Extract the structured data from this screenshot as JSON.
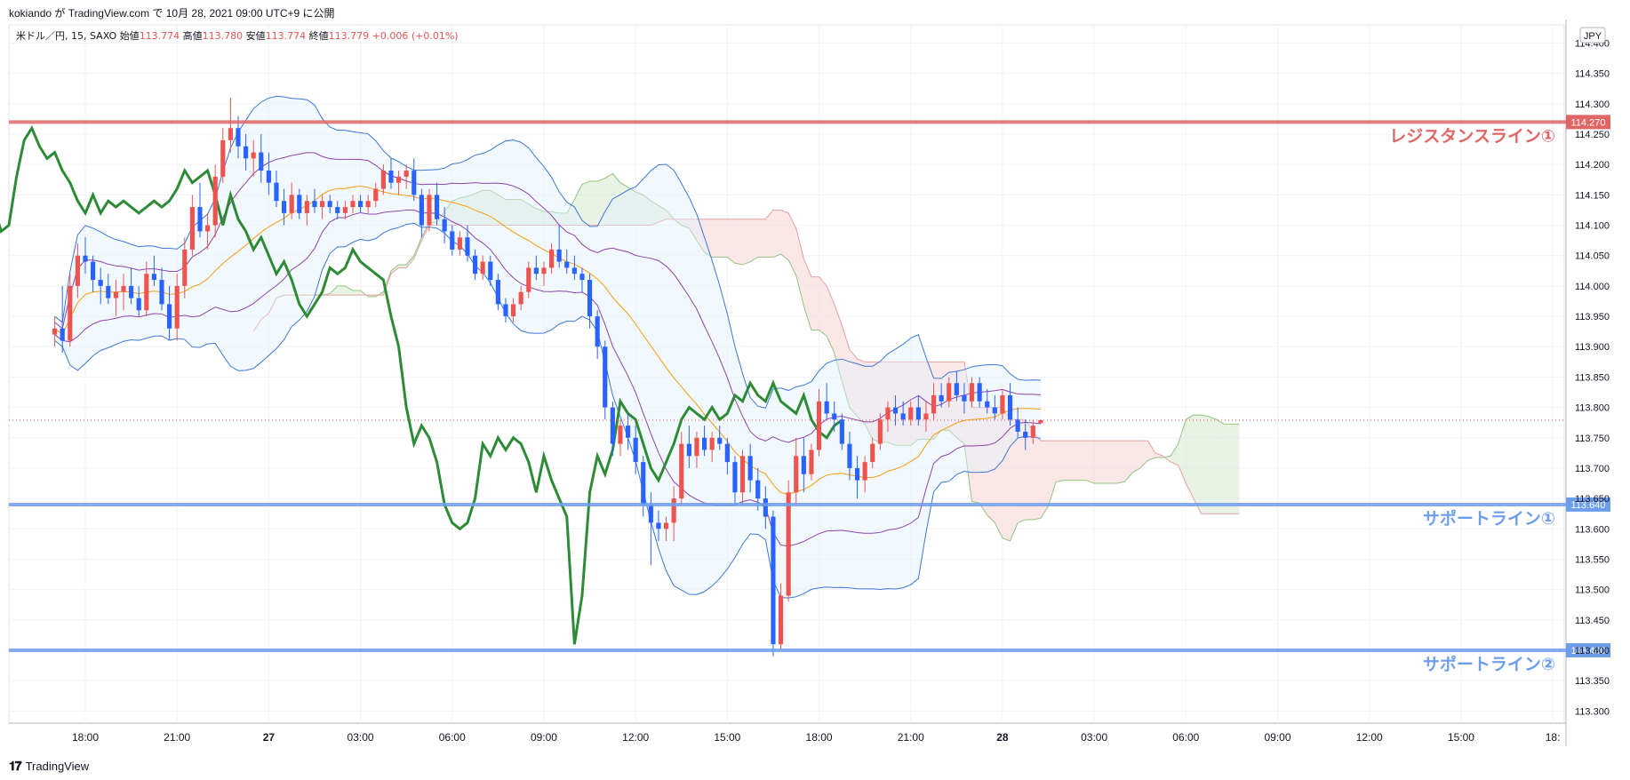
{
  "header": {
    "credit": "kokiando が TradingView.com で 10月 28, 2021 09:00 UTC+9 に公開"
  },
  "footer": {
    "logo_text": "TradingView",
    "logo_icon": "tradingview-logo-icon"
  },
  "chart_data": {
    "type": "candlestick",
    "symbol": "米ドル／円",
    "interval": "15",
    "source": "SAXO",
    "ohlc_legend": [
      {
        "label": "始値",
        "value": "113.774"
      },
      {
        "label": "高値",
        "value": "113.780"
      },
      {
        "label": "安値",
        "value": "113.774"
      },
      {
        "label": "終値",
        "value": "113.779"
      }
    ],
    "change_text": "+0.006 (+0.01%)",
    "currency_badge": "JPY",
    "y_ticks": [
      "114.400",
      "114.350",
      "114.300",
      "114.250",
      "114.200",
      "114.150",
      "114.100",
      "114.050",
      "114.000",
      "113.950",
      "113.900",
      "113.850",
      "113.800",
      "113.750",
      "113.700",
      "113.650",
      "113.600",
      "113.550",
      "113.500",
      "113.450",
      "113.400",
      "113.350",
      "113.300"
    ],
    "ylim": [
      113.28,
      114.43
    ],
    "x_ticks": [
      {
        "label": "18:00",
        "t": 4
      },
      {
        "label": "21:00",
        "t": 16
      },
      {
        "label": "27",
        "t": 28,
        "bold": true
      },
      {
        "label": "03:00",
        "t": 40
      },
      {
        "label": "06:00",
        "t": 52
      },
      {
        "label": "09:00",
        "t": 64
      },
      {
        "label": "12:00",
        "t": 76
      },
      {
        "label": "15:00",
        "t": 88
      },
      {
        "label": "18:00",
        "t": 100
      },
      {
        "label": "21:00",
        "t": 112
      },
      {
        "label": "28",
        "t": 124,
        "bold": true
      },
      {
        "label": "03:00",
        "t": 136
      },
      {
        "label": "06:00",
        "t": 148
      },
      {
        "label": "09:00",
        "t": 160
      },
      {
        "label": "12:00",
        "t": 172
      },
      {
        "label": "15:00",
        "t": 184
      },
      {
        "label": "18:",
        "t": 196
      }
    ],
    "xlim": [
      -6,
      197.5
    ],
    "horizontal_lines": [
      {
        "name": "レジスタンスライン①",
        "price": 114.27,
        "label": "114.270",
        "color": "#e06666"
      },
      {
        "name": "サポートライン①",
        "price": 113.64,
        "label": "113.640",
        "color": "#6d9eeb"
      },
      {
        "name": "サポートライン②",
        "price": 113.4,
        "label": "113.400",
        "color": "#6d9eeb"
      }
    ],
    "last_price": 113.779,
    "colors": {
      "up": "#ef5350",
      "down": "#2962ff",
      "bb_outer": "#3c78d8",
      "bb_inner": "#8e44ad",
      "bb_mid": "#f39c12",
      "lagging_span": "#2e8b35",
      "cloud_bull": "#d9ead3",
      "cloud_bear": "#f8d7d7"
    },
    "candles": [
      {
        "t": 0,
        "o": 113.92,
        "h": 113.95,
        "l": 113.9,
        "c": 113.93
      },
      {
        "t": 1,
        "o": 113.93,
        "h": 114.0,
        "l": 113.89,
        "c": 113.91
      },
      {
        "t": 2,
        "o": 113.91,
        "h": 114.02,
        "l": 113.9,
        "c": 114.0
      },
      {
        "t": 3,
        "o": 114.0,
        "h": 114.07,
        "l": 113.98,
        "c": 114.05
      },
      {
        "t": 4,
        "o": 114.05,
        "h": 114.08,
        "l": 114.02,
        "c": 114.04
      },
      {
        "t": 5,
        "o": 114.04,
        "h": 114.05,
        "l": 113.99,
        "c": 114.01
      },
      {
        "t": 6,
        "o": 114.01,
        "h": 114.03,
        "l": 113.97,
        "c": 114.0
      },
      {
        "t": 7,
        "o": 114.0,
        "h": 114.02,
        "l": 113.97,
        "c": 113.98
      },
      {
        "t": 8,
        "o": 113.98,
        "h": 114.01,
        "l": 113.95,
        "c": 113.99
      },
      {
        "t": 9,
        "o": 113.99,
        "h": 114.02,
        "l": 113.96,
        "c": 114.0
      },
      {
        "t": 10,
        "o": 114.0,
        "h": 114.03,
        "l": 113.97,
        "c": 113.98
      },
      {
        "t": 11,
        "o": 113.98,
        "h": 114.0,
        "l": 113.95,
        "c": 113.96
      },
      {
        "t": 12,
        "o": 113.96,
        "h": 114.04,
        "l": 113.95,
        "c": 114.02
      },
      {
        "t": 13,
        "o": 114.02,
        "h": 114.05,
        "l": 114.0,
        "c": 114.01
      },
      {
        "t": 14,
        "o": 114.01,
        "h": 114.03,
        "l": 113.96,
        "c": 113.97
      },
      {
        "t": 15,
        "o": 113.97,
        "h": 114.0,
        "l": 113.91,
        "c": 113.93
      },
      {
        "t": 16,
        "o": 113.93,
        "h": 114.02,
        "l": 113.91,
        "c": 114.0
      },
      {
        "t": 17,
        "o": 114.0,
        "h": 114.08,
        "l": 113.98,
        "c": 114.06
      },
      {
        "t": 18,
        "o": 114.06,
        "h": 114.15,
        "l": 114.05,
        "c": 114.13
      },
      {
        "t": 19,
        "o": 114.13,
        "h": 114.17,
        "l": 114.08,
        "c": 114.09
      },
      {
        "t": 20,
        "o": 114.09,
        "h": 114.12,
        "l": 114.06,
        "c": 114.1
      },
      {
        "t": 21,
        "o": 114.1,
        "h": 114.2,
        "l": 114.08,
        "c": 114.18
      },
      {
        "t": 22,
        "o": 114.18,
        "h": 114.26,
        "l": 114.17,
        "c": 114.24
      },
      {
        "t": 23,
        "o": 114.24,
        "h": 114.31,
        "l": 114.22,
        "c": 114.26
      },
      {
        "t": 24,
        "o": 114.26,
        "h": 114.28,
        "l": 114.21,
        "c": 114.23
      },
      {
        "t": 25,
        "o": 114.23,
        "h": 114.25,
        "l": 114.19,
        "c": 114.21
      },
      {
        "t": 26,
        "o": 114.21,
        "h": 114.24,
        "l": 114.18,
        "c": 114.22
      },
      {
        "t": 27,
        "o": 114.22,
        "h": 114.25,
        "l": 114.17,
        "c": 114.19
      },
      {
        "t": 28,
        "o": 114.19,
        "h": 114.22,
        "l": 114.15,
        "c": 114.17
      },
      {
        "t": 29,
        "o": 114.17,
        "h": 114.19,
        "l": 114.13,
        "c": 114.14
      },
      {
        "t": 30,
        "o": 114.14,
        "h": 114.16,
        "l": 114.1,
        "c": 114.12
      },
      {
        "t": 31,
        "o": 114.12,
        "h": 114.17,
        "l": 114.11,
        "c": 114.15
      },
      {
        "t": 32,
        "o": 114.15,
        "h": 114.16,
        "l": 114.11,
        "c": 114.12
      },
      {
        "t": 33,
        "o": 114.12,
        "h": 114.15,
        "l": 114.1,
        "c": 114.14
      },
      {
        "t": 34,
        "o": 114.14,
        "h": 114.16,
        "l": 114.12,
        "c": 114.13
      },
      {
        "t": 35,
        "o": 114.13,
        "h": 114.15,
        "l": 114.11,
        "c": 114.14
      },
      {
        "t": 36,
        "o": 114.14,
        "h": 114.15,
        "l": 114.12,
        "c": 114.13
      },
      {
        "t": 37,
        "o": 114.13,
        "h": 114.14,
        "l": 114.11,
        "c": 114.12
      },
      {
        "t": 38,
        "o": 114.12,
        "h": 114.14,
        "l": 114.11,
        "c": 114.13
      },
      {
        "t": 39,
        "o": 114.13,
        "h": 114.15,
        "l": 114.12,
        "c": 114.14
      },
      {
        "t": 40,
        "o": 114.14,
        "h": 114.15,
        "l": 114.12,
        "c": 114.13
      },
      {
        "t": 41,
        "o": 114.13,
        "h": 114.15,
        "l": 114.12,
        "c": 114.14
      },
      {
        "t": 42,
        "o": 114.14,
        "h": 114.17,
        "l": 114.13,
        "c": 114.16
      },
      {
        "t": 43,
        "o": 114.16,
        "h": 114.2,
        "l": 114.15,
        "c": 114.19
      },
      {
        "t": 44,
        "o": 114.19,
        "h": 114.21,
        "l": 114.16,
        "c": 114.17
      },
      {
        "t": 45,
        "o": 114.17,
        "h": 114.19,
        "l": 114.15,
        "c": 114.18
      },
      {
        "t": 46,
        "o": 114.18,
        "h": 114.2,
        "l": 114.16,
        "c": 114.19
      },
      {
        "t": 47,
        "o": 114.19,
        "h": 114.21,
        "l": 114.14,
        "c": 114.15
      },
      {
        "t": 48,
        "o": 114.15,
        "h": 114.16,
        "l": 114.08,
        "c": 114.1
      },
      {
        "t": 49,
        "o": 114.1,
        "h": 114.16,
        "l": 114.09,
        "c": 114.15
      },
      {
        "t": 50,
        "o": 114.15,
        "h": 114.17,
        "l": 114.1,
        "c": 114.11
      },
      {
        "t": 51,
        "o": 114.11,
        "h": 114.13,
        "l": 114.07,
        "c": 114.09
      },
      {
        "t": 52,
        "o": 114.09,
        "h": 114.1,
        "l": 114.05,
        "c": 114.06
      },
      {
        "t": 53,
        "o": 114.06,
        "h": 114.09,
        "l": 114.05,
        "c": 114.08
      },
      {
        "t": 54,
        "o": 114.08,
        "h": 114.1,
        "l": 114.04,
        "c": 114.05
      },
      {
        "t": 55,
        "o": 114.05,
        "h": 114.06,
        "l": 114.01,
        "c": 114.02
      },
      {
        "t": 56,
        "o": 114.02,
        "h": 114.05,
        "l": 114.01,
        "c": 114.04
      },
      {
        "t": 57,
        "o": 114.04,
        "h": 114.05,
        "l": 114.0,
        "c": 114.01
      },
      {
        "t": 58,
        "o": 114.01,
        "h": 114.02,
        "l": 113.96,
        "c": 113.97
      },
      {
        "t": 59,
        "o": 113.97,
        "h": 113.98,
        "l": 113.94,
        "c": 113.95
      },
      {
        "t": 60,
        "o": 113.95,
        "h": 113.98,
        "l": 113.94,
        "c": 113.97
      },
      {
        "t": 61,
        "o": 113.97,
        "h": 114.0,
        "l": 113.96,
        "c": 113.99
      },
      {
        "t": 62,
        "o": 113.99,
        "h": 114.04,
        "l": 113.98,
        "c": 114.03
      },
      {
        "t": 63,
        "o": 114.03,
        "h": 114.05,
        "l": 114.01,
        "c": 114.02
      },
      {
        "t": 64,
        "o": 114.02,
        "h": 114.04,
        "l": 114.0,
        "c": 114.03
      },
      {
        "t": 65,
        "o": 114.03,
        "h": 114.07,
        "l": 114.02,
        "c": 114.06
      },
      {
        "t": 66,
        "o": 114.06,
        "h": 114.1,
        "l": 114.03,
        "c": 114.04
      },
      {
        "t": 67,
        "o": 114.04,
        "h": 114.06,
        "l": 114.02,
        "c": 114.03
      },
      {
        "t": 68,
        "o": 114.03,
        "h": 114.05,
        "l": 114.01,
        "c": 114.02
      },
      {
        "t": 69,
        "o": 114.02,
        "h": 114.03,
        "l": 113.99,
        "c": 114.01
      },
      {
        "t": 70,
        "o": 114.01,
        "h": 114.02,
        "l": 113.93,
        "c": 113.95
      },
      {
        "t": 71,
        "o": 113.95,
        "h": 113.96,
        "l": 113.88,
        "c": 113.9
      },
      {
        "t": 72,
        "o": 113.9,
        "h": 113.91,
        "l": 113.78,
        "c": 113.8
      },
      {
        "t": 73,
        "o": 113.8,
        "h": 113.81,
        "l": 113.72,
        "c": 113.74
      },
      {
        "t": 74,
        "o": 113.74,
        "h": 113.78,
        "l": 113.72,
        "c": 113.77
      },
      {
        "t": 75,
        "o": 113.77,
        "h": 113.79,
        "l": 113.73,
        "c": 113.75
      },
      {
        "t": 76,
        "o": 113.75,
        "h": 113.77,
        "l": 113.69,
        "c": 113.71
      },
      {
        "t": 77,
        "o": 113.71,
        "h": 113.72,
        "l": 113.62,
        "c": 113.64
      },
      {
        "t": 78,
        "o": 113.64,
        "h": 113.66,
        "l": 113.54,
        "c": 113.61
      },
      {
        "t": 79,
        "o": 113.61,
        "h": 113.63,
        "l": 113.58,
        "c": 113.6
      },
      {
        "t": 80,
        "o": 113.6,
        "h": 113.62,
        "l": 113.58,
        "c": 113.61
      },
      {
        "t": 81,
        "o": 113.61,
        "h": 113.67,
        "l": 113.58,
        "c": 113.65
      },
      {
        "t": 82,
        "o": 113.65,
        "h": 113.76,
        "l": 113.64,
        "c": 113.74
      },
      {
        "t": 83,
        "o": 113.74,
        "h": 113.77,
        "l": 113.7,
        "c": 113.72
      },
      {
        "t": 84,
        "o": 113.72,
        "h": 113.76,
        "l": 113.7,
        "c": 113.75
      },
      {
        "t": 85,
        "o": 113.75,
        "h": 113.77,
        "l": 113.72,
        "c": 113.73
      },
      {
        "t": 86,
        "o": 113.73,
        "h": 113.76,
        "l": 113.71,
        "c": 113.75
      },
      {
        "t": 87,
        "o": 113.75,
        "h": 113.77,
        "l": 113.73,
        "c": 113.74
      },
      {
        "t": 88,
        "o": 113.74,
        "h": 113.75,
        "l": 113.69,
        "c": 113.71
      },
      {
        "t": 89,
        "o": 113.71,
        "h": 113.72,
        "l": 113.64,
        "c": 113.66
      },
      {
        "t": 90,
        "o": 113.66,
        "h": 113.73,
        "l": 113.64,
        "c": 113.72
      },
      {
        "t": 91,
        "o": 113.72,
        "h": 113.74,
        "l": 113.66,
        "c": 113.68
      },
      {
        "t": 92,
        "o": 113.68,
        "h": 113.7,
        "l": 113.63,
        "c": 113.65
      },
      {
        "t": 93,
        "o": 113.65,
        "h": 113.67,
        "l": 113.6,
        "c": 113.62
      },
      {
        "t": 94,
        "o": 113.62,
        "h": 113.63,
        "l": 113.39,
        "c": 113.41
      },
      {
        "t": 95,
        "o": 113.41,
        "h": 113.51,
        "l": 113.4,
        "c": 113.49
      },
      {
        "t": 96,
        "o": 113.49,
        "h": 113.68,
        "l": 113.48,
        "c": 113.66
      },
      {
        "t": 97,
        "o": 113.66,
        "h": 113.75,
        "l": 113.64,
        "c": 113.72
      },
      {
        "t": 98,
        "o": 113.72,
        "h": 113.75,
        "l": 113.66,
        "c": 113.69
      },
      {
        "t": 99,
        "o": 113.69,
        "h": 113.74,
        "l": 113.68,
        "c": 113.73
      },
      {
        "t": 100,
        "o": 113.73,
        "h": 113.83,
        "l": 113.72,
        "c": 113.81
      },
      {
        "t": 101,
        "o": 113.81,
        "h": 113.84,
        "l": 113.78,
        "c": 113.79
      },
      {
        "t": 102,
        "o": 113.79,
        "h": 113.81,
        "l": 113.76,
        "c": 113.78
      },
      {
        "t": 103,
        "o": 113.78,
        "h": 113.79,
        "l": 113.73,
        "c": 113.74
      },
      {
        "t": 104,
        "o": 113.74,
        "h": 113.76,
        "l": 113.68,
        "c": 113.7
      },
      {
        "t": 105,
        "o": 113.7,
        "h": 113.72,
        "l": 113.65,
        "c": 113.68
      },
      {
        "t": 106,
        "o": 113.68,
        "h": 113.72,
        "l": 113.66,
        "c": 113.71
      },
      {
        "t": 107,
        "o": 113.71,
        "h": 113.75,
        "l": 113.7,
        "c": 113.74
      },
      {
        "t": 108,
        "o": 113.74,
        "h": 113.79,
        "l": 113.73,
        "c": 113.78
      },
      {
        "t": 109,
        "o": 113.78,
        "h": 113.81,
        "l": 113.76,
        "c": 113.8
      },
      {
        "t": 110,
        "o": 113.8,
        "h": 113.82,
        "l": 113.77,
        "c": 113.79
      },
      {
        "t": 111,
        "o": 113.79,
        "h": 113.81,
        "l": 113.77,
        "c": 113.78
      },
      {
        "t": 112,
        "o": 113.78,
        "h": 113.81,
        "l": 113.77,
        "c": 113.8
      },
      {
        "t": 113,
        "o": 113.8,
        "h": 113.82,
        "l": 113.77,
        "c": 113.78
      },
      {
        "t": 114,
        "o": 113.78,
        "h": 113.81,
        "l": 113.76,
        "c": 113.79
      },
      {
        "t": 115,
        "o": 113.79,
        "h": 113.84,
        "l": 113.78,
        "c": 113.82
      },
      {
        "t": 116,
        "o": 113.82,
        "h": 113.84,
        "l": 113.8,
        "c": 113.81
      },
      {
        "t": 117,
        "o": 113.81,
        "h": 113.85,
        "l": 113.8,
        "c": 113.84
      },
      {
        "t": 118,
        "o": 113.84,
        "h": 113.86,
        "l": 113.81,
        "c": 113.82
      },
      {
        "t": 119,
        "o": 113.82,
        "h": 113.84,
        "l": 113.79,
        "c": 113.81
      },
      {
        "t": 120,
        "o": 113.81,
        "h": 113.85,
        "l": 113.8,
        "c": 113.84
      },
      {
        "t": 121,
        "o": 113.84,
        "h": 113.85,
        "l": 113.8,
        "c": 113.81
      },
      {
        "t": 122,
        "o": 113.81,
        "h": 113.83,
        "l": 113.79,
        "c": 113.8
      },
      {
        "t": 123,
        "o": 113.8,
        "h": 113.82,
        "l": 113.78,
        "c": 113.79
      },
      {
        "t": 124,
        "o": 113.79,
        "h": 113.83,
        "l": 113.78,
        "c": 113.82
      },
      {
        "t": 125,
        "o": 113.82,
        "h": 113.84,
        "l": 113.77,
        "c": 113.78
      },
      {
        "t": 126,
        "o": 113.78,
        "h": 113.8,
        "l": 113.75,
        "c": 113.76
      },
      {
        "t": 127,
        "o": 113.76,
        "h": 113.78,
        "l": 113.73,
        "c": 113.75
      },
      {
        "t": 128,
        "o": 113.75,
        "h": 113.78,
        "l": 113.74,
        "c": 113.77
      },
      {
        "t": 129,
        "o": 113.774,
        "h": 113.78,
        "l": 113.774,
        "c": 113.779
      }
    ]
  },
  "annotations": {
    "resistance_1": "レジスタンスライン①",
    "support_1": "サポートライン①",
    "support_2": "サポートライン②"
  }
}
